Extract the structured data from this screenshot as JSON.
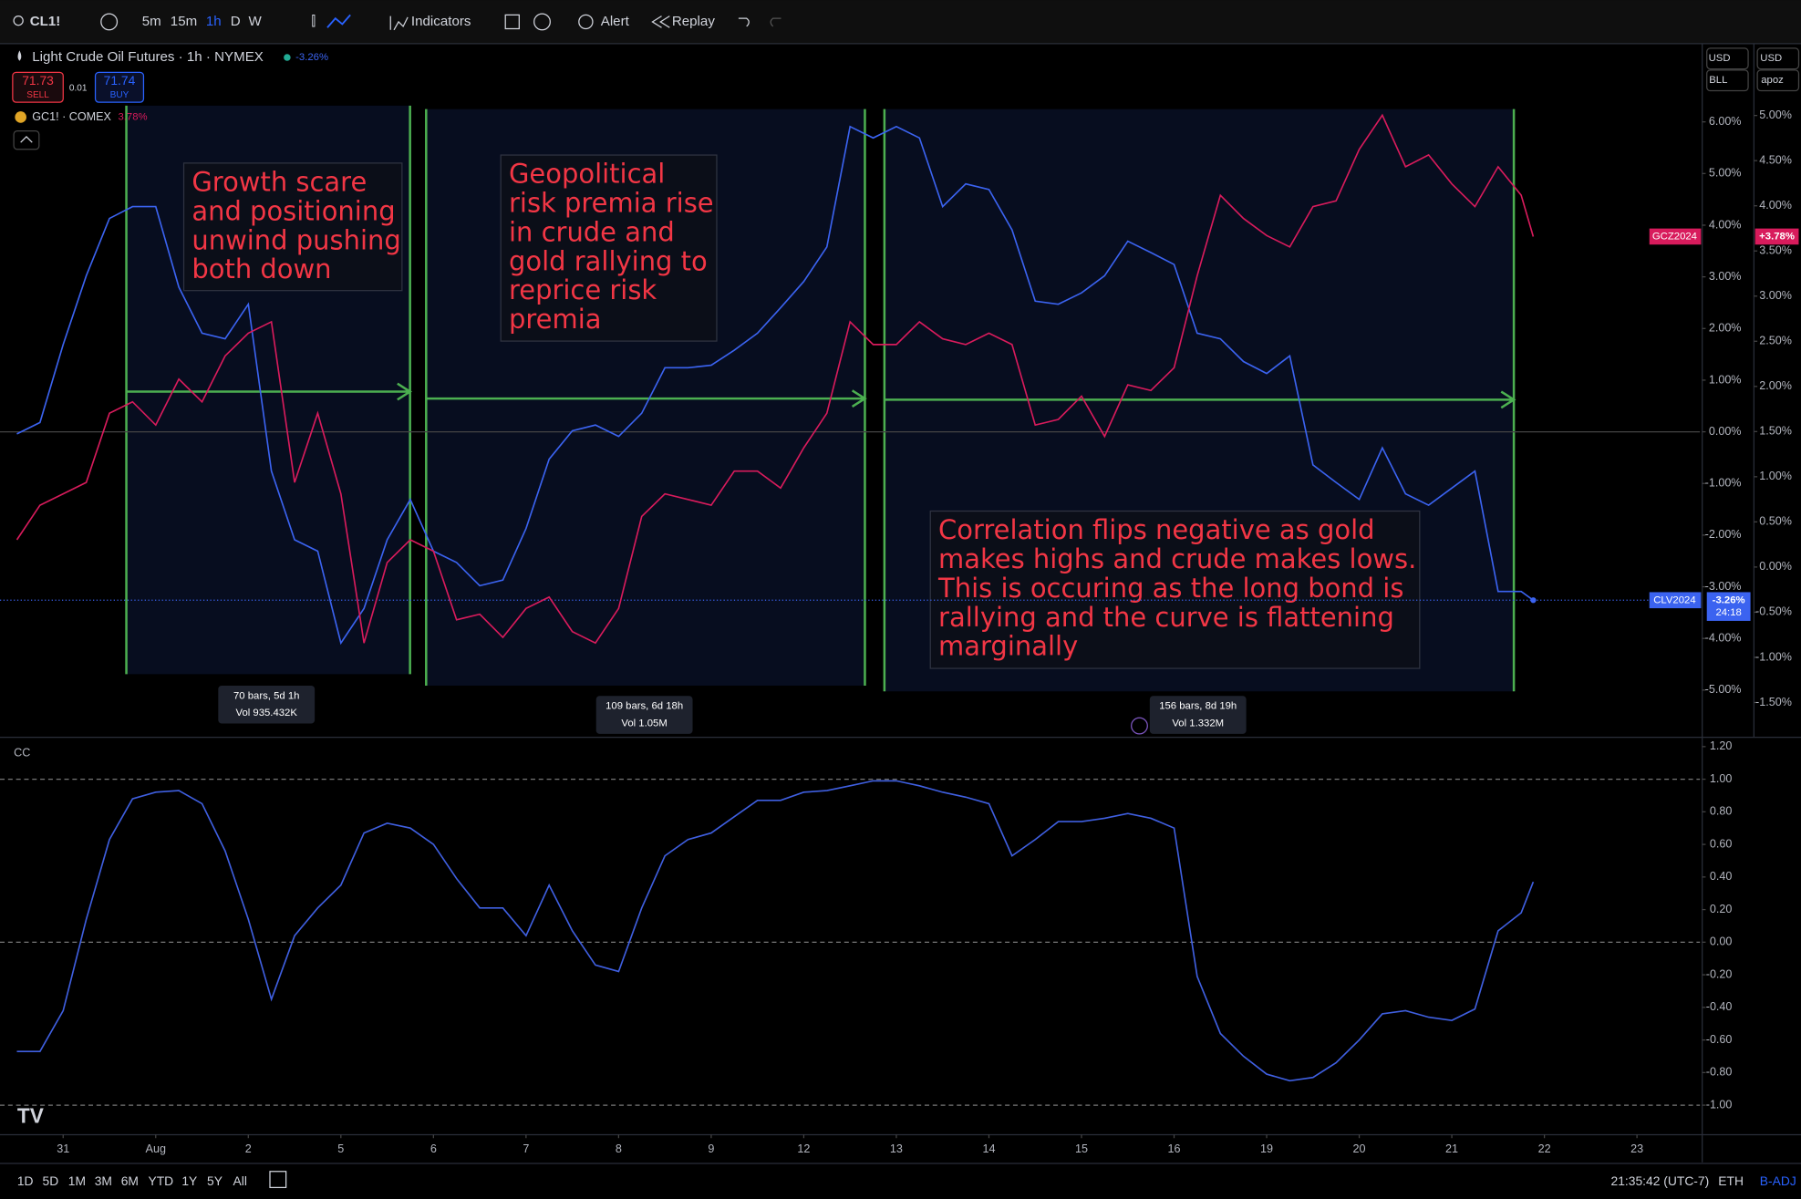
{
  "toolbar": {
    "symbol": "CL1!",
    "intervals": [
      "5m",
      "15m",
      "1h",
      "D",
      "W"
    ],
    "indicators": "Indicators",
    "alert": "Alert",
    "replay": "Replay"
  },
  "quote": {
    "sell_price": 71.73,
    "sell": "SELL",
    "spread": 0.01,
    "buy_price": 71.74,
    "buy": "BUY"
  },
  "scale_menus": [
    "USD",
    "BLL",
    "USD",
    "apoz"
  ],
  "drawings": {
    "notes": [
      {
        "lines": [
          "Growth scare",
          "and positioning",
          "unwind pushing",
          "both down"
        ]
      },
      {
        "lines": [
          "Geopolitical",
          "risk premia rise",
          "in crude and",
          "gold rallying to",
          "reprice risk",
          "premia"
        ]
      },
      {
        "lines": [
          "Correlation flips negative as gold",
          "makes highs and crude makes lows.",
          "This is occuring as the long bond is",
          "rallying and the curve is flattening",
          "marginally"
        ]
      }
    ],
    "measures": [
      {
        "bars": "70 bars, 5d 1h",
        "vol": "Vol 935.432K"
      },
      {
        "bars": "109 bars, 6d 18h",
        "vol": "Vol 1.05M"
      },
      {
        "bars": "156 bars, 8d 19h",
        "vol": "Vol 1.332M"
      }
    ]
  },
  "chart_data": [
    {
      "type": "line",
      "x": [
        -0.5,
        -0.25,
        0,
        0.25,
        0.5,
        0.75,
        1,
        1.25,
        1.5,
        1.75,
        2,
        2.25,
        2.5,
        2.75,
        3,
        3.25,
        3.5,
        3.75,
        4,
        4.25,
        4.5,
        4.75,
        5,
        5.25,
        5.5,
        5.75,
        6,
        6.25,
        6.5,
        6.75,
        7,
        7.25,
        7.5,
        7.75,
        8,
        8.25,
        8.5,
        8.75,
        9,
        9.25,
        9.5,
        9.75,
        10,
        10.25,
        10.5,
        10.75,
        11,
        11.25,
        11.5,
        11.75,
        12,
        12.25,
        12.5,
        12.75,
        13,
        13.25,
        13.5,
        13.75,
        14,
        14.25,
        14.5,
        14.75,
        15,
        15.25,
        15.5,
        15.75,
        15.88
      ],
      "xlim": [
        -0.62,
        17.68
      ],
      "ylim": [
        -5.87,
        7.47
      ],
      "yticks": [
        {
          "value": 6,
          "label": "6.00%"
        },
        {
          "value": 5,
          "label": "5.00%"
        },
        {
          "value": 4,
          "label": "4.00%"
        },
        {
          "value": 3,
          "label": "3.00%"
        },
        {
          "value": 2,
          "label": "2.00%"
        },
        {
          "value": 1,
          "label": "1.00%"
        },
        {
          "value": 0,
          "label": "0.00%"
        },
        {
          "value": -1,
          "label": "-1.00%"
        },
        {
          "value": -2,
          "label": "-2.00%"
        },
        {
          "value": -3,
          "label": "-3.00%"
        },
        {
          "value": -4,
          "label": "-4.00%"
        },
        {
          "value": -5,
          "label": "-5.00%"
        }
      ],
      "y2lim": [
        -1.86,
        5.77
      ],
      "y2ticks": [
        {
          "value": 5,
          "label": "5.00%"
        },
        {
          "value": 4.5,
          "label": "4.50%"
        },
        {
          "value": 4,
          "label": "4.00%"
        },
        {
          "value": 3.5,
          "label": "3.50%"
        },
        {
          "value": 3,
          "label": "3.00%"
        },
        {
          "value": 2.5,
          "label": "2.50%"
        },
        {
          "value": 2,
          "label": "2.00%"
        },
        {
          "value": 1.5,
          "label": "1.50%"
        },
        {
          "value": 1,
          "label": "1.00%"
        },
        {
          "value": 0.5,
          "label": "0.50%"
        },
        {
          "value": 0,
          "label": "0.00%"
        },
        {
          "value": -0.5,
          "label": "-0.50%"
        },
        {
          "value": -1,
          "label": "-1.00%"
        },
        {
          "value": -1.5,
          "label": "-1.50%"
        }
      ],
      "hlines": [
        0
      ],
      "series": [
        {
          "name": "Light Crude Oil Futures · 1h · NYMEX",
          "legend_change": "-3.26%",
          "symbol": "CLV2024",
          "tag_label": "-3.26%",
          "tag_time": "24:18",
          "color": "#3b63f0",
          "values": [
            -0.04,
            0.18,
            1.69,
            3.02,
            4.13,
            4.36,
            4.36,
            2.8,
            1.91,
            1.8,
            2.47,
            -0.76,
            -2.09,
            -2.31,
            -4.09,
            -3.42,
            -2.09,
            -1.31,
            -2.31,
            -2.53,
            -2.98,
            -2.87,
            -1.87,
            -0.53,
            0.02,
            0.13,
            -0.09,
            0.36,
            1.24,
            1.24,
            1.29,
            1.58,
            1.91,
            2.4,
            2.91,
            3.58,
            5.91,
            5.69,
            5.91,
            5.69,
            4.36,
            4.8,
            4.69,
            3.91,
            2.53,
            2.47,
            2.69,
            3.02,
            3.69,
            3.47,
            3.24,
            1.91,
            1.8,
            1.36,
            1.13,
            1.47,
            -0.64,
            -0.98,
            -1.31,
            -0.31,
            -1.2,
            -1.42,
            -1.09,
            -0.76,
            -3.09,
            -3.09,
            -3.26
          ]
        },
        {
          "name": "GC1! · COMEX",
          "legend_change": "3.78%",
          "symbol": "GCZ2024",
          "tag_label": "+3.78%",
          "color": "#d81b5c",
          "values": [
            -2.09,
            -1.42,
            -1.2,
            -0.98,
            0.36,
            0.58,
            0.13,
            1.02,
            0.58,
            1.47,
            1.91,
            2.13,
            -0.98,
            0.36,
            -1.2,
            -4.09,
            -2.53,
            -2.09,
            -2.31,
            -3.64,
            -3.53,
            -3.98,
            -3.42,
            -3.2,
            -3.87,
            -4.09,
            -3.42,
            -1.64,
            -1.2,
            -1.31,
            -1.42,
            -0.76,
            -0.76,
            -1.09,
            -0.31,
            0.36,
            2.13,
            1.69,
            1.69,
            2.13,
            1.8,
            1.69,
            1.91,
            1.69,
            0.13,
            0.24,
            0.69,
            -0.09,
            0.91,
            0.8,
            1.24,
            3.02,
            4.58,
            4.13,
            3.8,
            3.58,
            4.36,
            4.47,
            5.47,
            6.13,
            5.13,
            5.36,
            4.8,
            4.36,
            5.13,
            4.58,
            3.78
          ]
        }
      ]
    },
    {
      "type": "line",
      "title": "CC",
      "x": [
        -0.5,
        -0.25,
        0,
        0.25,
        0.5,
        0.75,
        1,
        1.25,
        1.5,
        1.75,
        2,
        2.25,
        2.5,
        2.75,
        3,
        3.25,
        3.5,
        3.75,
        4,
        4.25,
        4.5,
        4.75,
        5,
        5.25,
        5.5,
        5.75,
        6,
        6.25,
        6.5,
        6.75,
        7,
        7.25,
        7.5,
        7.75,
        8,
        8.25,
        8.5,
        8.75,
        9,
        9.25,
        9.5,
        9.75,
        10,
        10.25,
        10.5,
        10.75,
        11,
        11.25,
        11.5,
        11.75,
        12,
        12.25,
        12.5,
        12.75,
        13,
        13.25,
        13.5,
        13.75,
        14,
        14.25,
        14.5,
        14.75,
        15,
        15.25,
        15.5,
        15.75,
        15.88
      ],
      "xlim": [
        -0.62,
        17.68
      ],
      "xticks": [
        {
          "value": 0,
          "label": "31"
        },
        {
          "value": 1,
          "label": "Aug"
        },
        {
          "value": 2,
          "label": "2"
        },
        {
          "value": 3,
          "label": "5"
        },
        {
          "value": 4,
          "label": "6"
        },
        {
          "value": 5,
          "label": "7"
        },
        {
          "value": 6,
          "label": "8"
        },
        {
          "value": 7,
          "label": "9"
        },
        {
          "value": 8,
          "label": "12"
        },
        {
          "value": 9,
          "label": "13"
        },
        {
          "value": 10,
          "label": "14"
        },
        {
          "value": 11,
          "label": "15"
        },
        {
          "value": 12,
          "label": "16"
        },
        {
          "value": 13,
          "label": "19"
        },
        {
          "value": 14,
          "label": "20"
        },
        {
          "value": 15,
          "label": "21"
        },
        {
          "value": 16,
          "label": "22"
        },
        {
          "value": 17,
          "label": "23"
        }
      ],
      "ylim": [
        -1.16,
        1.25
      ],
      "yticks": [
        {
          "value": 1.2,
          "label": "1.20"
        },
        {
          "value": 1,
          "label": "1.00"
        },
        {
          "value": 0.8,
          "label": "0.80"
        },
        {
          "value": 0.6,
          "label": "0.60"
        },
        {
          "value": 0.4,
          "label": "0.40"
        },
        {
          "value": 0.2,
          "label": "0.20"
        },
        {
          "value": 0,
          "label": "0.00"
        },
        {
          "value": -0.2,
          "label": "-0.20"
        },
        {
          "value": -0.4,
          "label": "-0.40"
        },
        {
          "value": -0.6,
          "label": "-0.60"
        },
        {
          "value": -0.8,
          "label": "-0.80"
        },
        {
          "value": -1,
          "label": "-1.00"
        }
      ],
      "hlines": [
        1,
        0,
        -1
      ],
      "series": [
        {
          "color": "#3f5fe0",
          "values": [
            -0.67,
            -0.67,
            -0.42,
            0.14,
            0.63,
            0.88,
            0.92,
            0.93,
            0.85,
            0.56,
            0.14,
            -0.35,
            0.04,
            0.21,
            0.35,
            0.67,
            0.73,
            0.7,
            0.6,
            0.39,
            0.21,
            0.21,
            0.04,
            0.35,
            0.07,
            -0.14,
            -0.18,
            0.21,
            0.53,
            0.63,
            0.67,
            0.77,
            0.87,
            0.87,
            0.92,
            0.93,
            0.96,
            0.99,
            0.99,
            0.96,
            0.92,
            0.89,
            0.85,
            0.53,
            0.63,
            0.74,
            0.74,
            0.76,
            0.79,
            0.76,
            0.7,
            -0.21,
            -0.56,
            -0.7,
            -0.81,
            -0.85,
            -0.83,
            -0.74,
            -0.6,
            -0.44,
            -0.42,
            -0.46,
            -0.48,
            -0.41,
            0.07,
            0.18,
            0.37
          ]
        }
      ]
    }
  ],
  "bottom_bar": {
    "ranges": [
      "1D",
      "5D",
      "1M",
      "3M",
      "6M",
      "YTD",
      "1Y",
      "5Y",
      "All"
    ],
    "clock": "21:35:42 (UTC-7)",
    "session": "ETH",
    "adjustment": "B-ADJ"
  }
}
